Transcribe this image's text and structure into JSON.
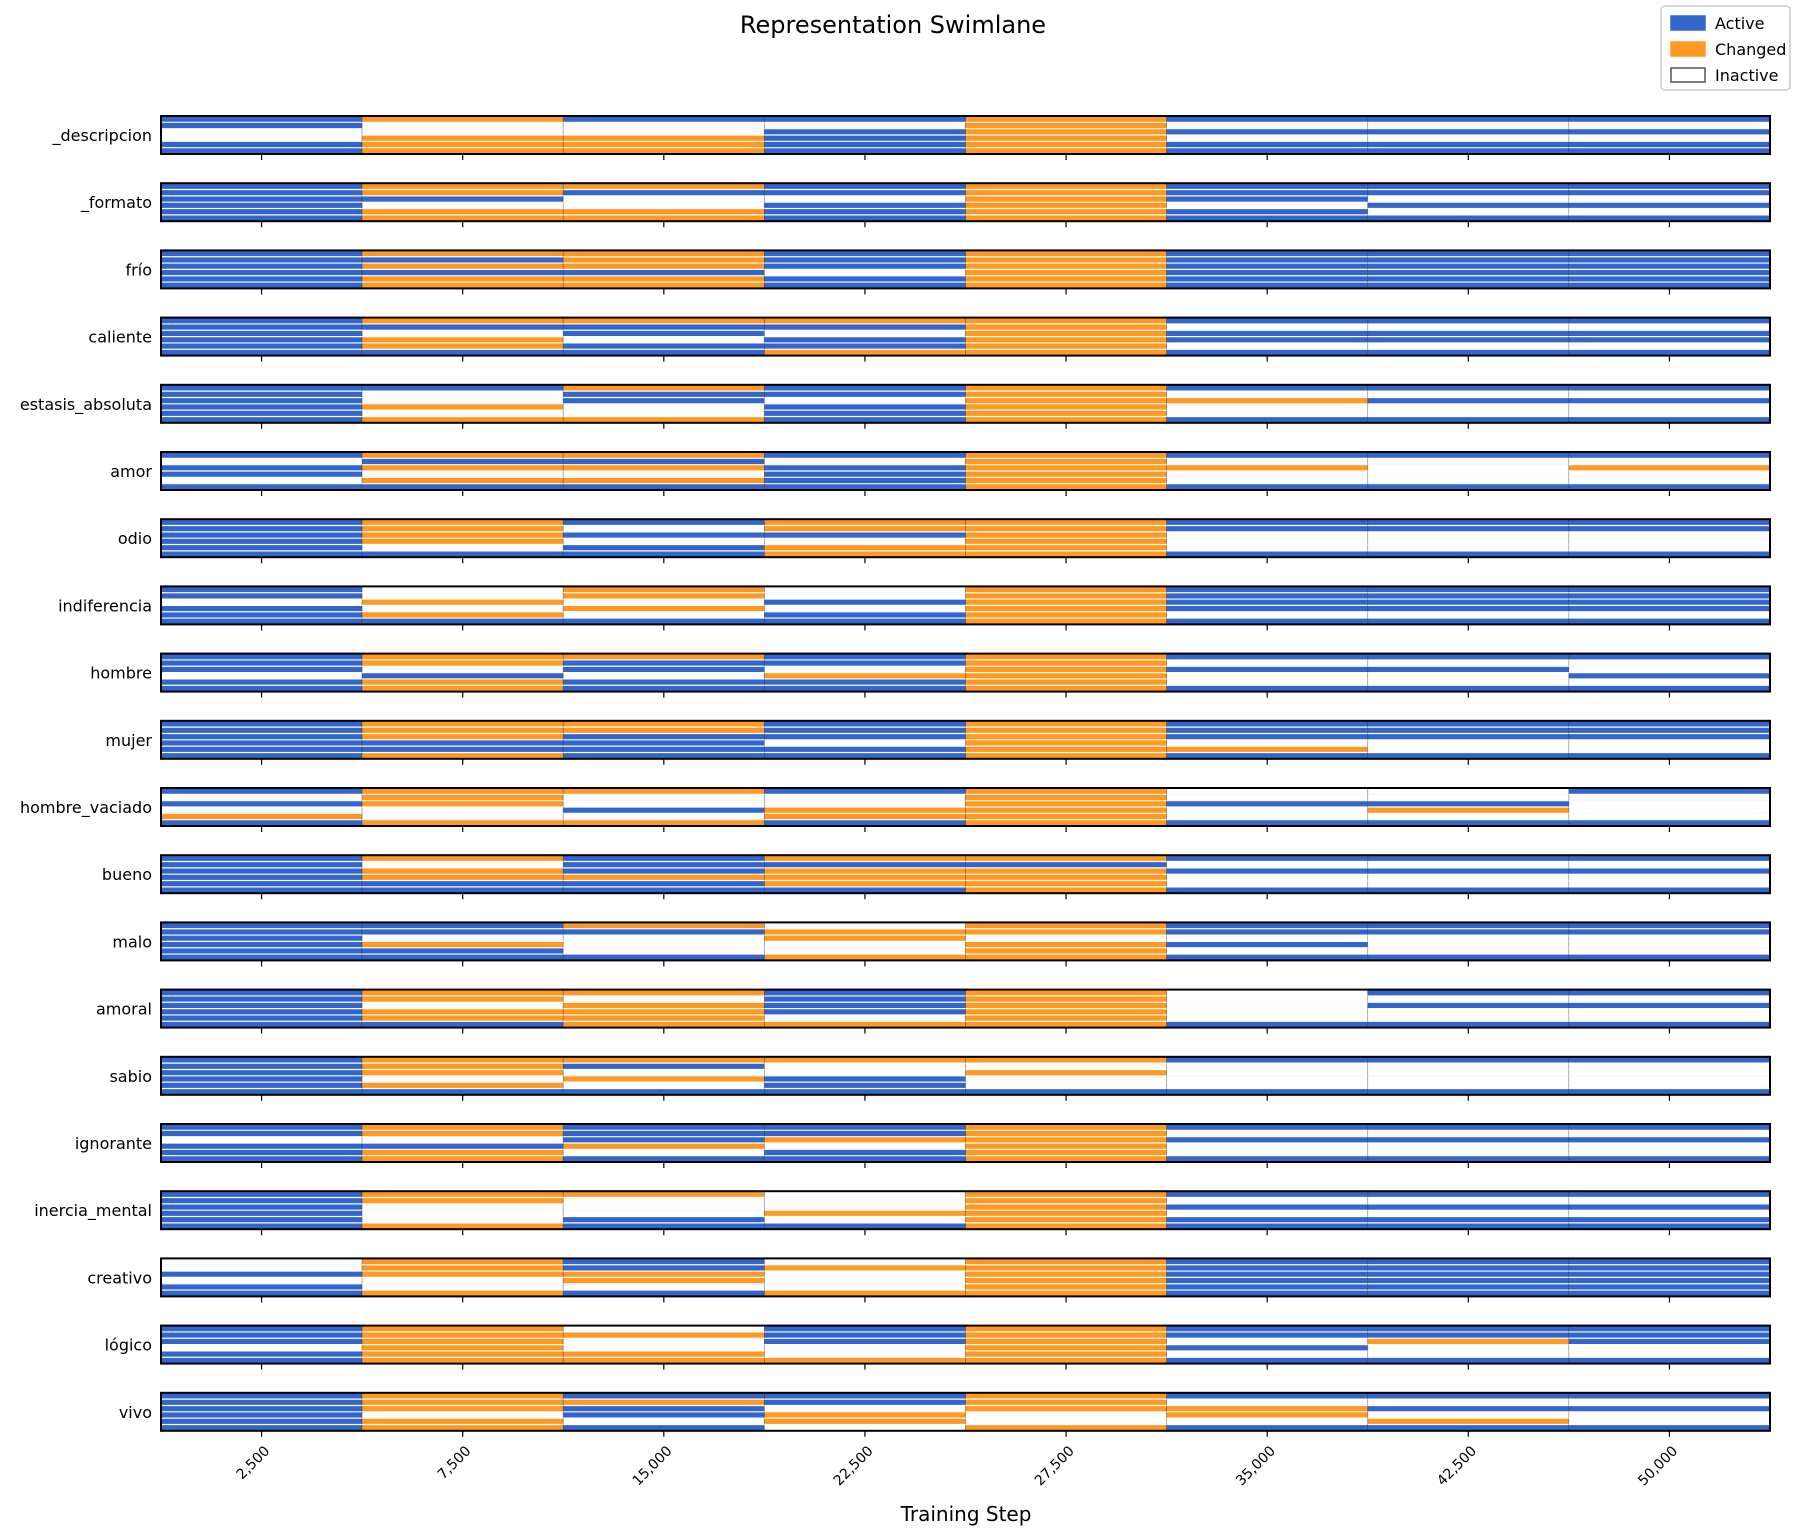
{
  "chart_data": {
    "type": "swimlane",
    "title": "Representation Swimlane",
    "xlabel": "Training Step",
    "ylabel": "",
    "x_ticks": [
      "2,500",
      "7,500",
      "15,000",
      "22,500",
      "27,500",
      "35,000",
      "42,500",
      "50,000"
    ],
    "segments": 8,
    "stripes_per_lane": 6,
    "legend": {
      "position": "top-right",
      "items": [
        {
          "label": "Active",
          "color": "#3366cc",
          "style": "filled"
        },
        {
          "label": "Changed",
          "color": "#ff9922",
          "style": "filled"
        },
        {
          "label": "Inactive",
          "color": "#ffffff",
          "style": "outline"
        }
      ]
    },
    "state_codes": {
      "A": "Active",
      "C": "Changed",
      "I": "Inactive"
    },
    "lanes": [
      {
        "label": "_descripcion",
        "states": [
          "AAIIAA",
          "CIICCC",
          "AIICCC",
          "AIAAAA",
          "CCCCCC",
          "AIAIAA",
          "AIAIAA",
          "AIAIAA"
        ]
      },
      {
        "label": "_formato",
        "states": [
          "AAAAAA",
          "CCAICC",
          "CAIICC",
          "AAIAAA",
          "CCCCCC",
          "AAAIAA",
          "AAIAIA",
          "AAIAIA"
        ]
      },
      {
        "label": "frío",
        "states": [
          "AAAAAA",
          "CACACC",
          "CCCACC",
          "AAAIAA",
          "CCCCCC",
          "AAAAAA",
          "AAAAAA",
          "AAAAAA"
        ]
      },
      {
        "label": "caliente",
        "states": [
          "AAAAAA",
          "CAICCA",
          "CAAIAA",
          "CAIAAC",
          "CCCCCC",
          "AIAAIA",
          "AIAAIA",
          "AIAAIA"
        ]
      },
      {
        "label": "estasis_absoluta",
        "states": [
          "AAAAAA",
          "AIICIC",
          "CAAIIC",
          "AAIAAA",
          "CCCCCC",
          "AICIIA",
          "AIAIIA",
          "AIAIIA"
        ]
      },
      {
        "label": "amor",
        "states": [
          "AIAAIA",
          "CACICA",
          "CACICA",
          "AIAAAA",
          "CCCCCC",
          "AICIIA",
          "AIIIIA",
          "AICIIA"
        ]
      },
      {
        "label": "odio",
        "states": [
          "AAAAAA",
          "CCCCIA",
          "AIAIAA",
          "CCAICC",
          "CCCCCC",
          "AAIIIA",
          "AAIIIA",
          "AAIIIA"
        ]
      },
      {
        "label": "indiferencia",
        "states": [
          "AAIAAA",
          "IICICA",
          "CCICIA",
          "IIAIAA",
          "CCCCCC",
          "AAAAIA",
          "AAAAIA",
          "AAAAIA"
        ]
      },
      {
        "label": "hombre",
        "states": [
          "AAAIAA",
          "CCIACC",
          "CAAIAA",
          "AAICAA",
          "CCCCCC",
          "AIAIIA",
          "AIAIIA",
          "AIIAIA"
        ]
      },
      {
        "label": "mujer",
        "states": [
          "AAAAAA",
          "CCCAAC",
          "CCAAAA",
          "AAAIAA",
          "CCCCCC",
          "AAAICA",
          "AAAIIA",
          "AAAIIA"
        ]
      },
      {
        "label": "hombre_vaciado",
        "states": [
          "AIAICA",
          "CCCIIC",
          "CIIAIC",
          "AIICCA",
          "CCCCCC",
          "IIAIIA",
          "IIACIA",
          "AIIIIA"
        ]
      },
      {
        "label": "bueno",
        "states": [
          "AAAAAA",
          "CICCAA",
          "AAACAA",
          "CACCCA",
          "CACCCC",
          "AIAIIA",
          "AIAIIA",
          "AIAIIA"
        ]
      },
      {
        "label": "malo",
        "states": [
          "AAAAAA",
          "AAICAA",
          "CAIIIA",
          "ICCIIC",
          "CCICCC",
          "AAIAIA",
          "AAIIIA",
          "AAIIIA"
        ]
      },
      {
        "label": "amoral",
        "states": [
          "AAAAAA",
          "CCICCA",
          "CICCCC",
          "AAAAIC",
          "CCCCCC",
          "IIIIIA",
          "AIAIIA",
          "AIAIIA"
        ]
      },
      {
        "label": "sabio",
        "states": [
          "AAAAAA",
          "CCCICA",
          "CAICIA",
          "CIIAAA",
          "CICIIA",
          "AIIIIA",
          "AIIIIA",
          "AIIIIA"
        ]
      },
      {
        "label": "ignorante",
        "states": [
          "AAIAAA",
          "CCIACC",
          "AAACIA",
          "AACIAA",
          "CCCCCC",
          "AIAIIA",
          "AIAIIA",
          "AIAIIA"
        ]
      },
      {
        "label": "inercia_mental",
        "states": [
          "AAAAAA",
          "CCIIIC",
          "CIIIAA",
          "IIICIA",
          "CCCCCC",
          "AIAIAA",
          "AIAIAA",
          "AIAIAA"
        ]
      },
      {
        "label": "creativo",
        "states": [
          "IIAIAA",
          "CCCIIC",
          "AACCIA",
          "ICIIIC",
          "CCCCCC",
          "AAAAAA",
          "AAAAAA",
          "AAAAAA"
        ]
      },
      {
        "label": "lógico",
        "states": [
          "AAAIAA",
          "CCCCCC",
          "ICIICC",
          "AAAIIC",
          "CCCCCC",
          "AAIAIA",
          "AACIIA",
          "AAAIIA"
        ]
      },
      {
        "label": "vivo",
        "states": [
          "AAAAAA",
          "CCCICC",
          "ACAAIA",
          "AAICCI",
          "CCCIIC",
          "AICCIA",
          "AIAICA",
          "AIAIIA"
        ]
      }
    ]
  }
}
